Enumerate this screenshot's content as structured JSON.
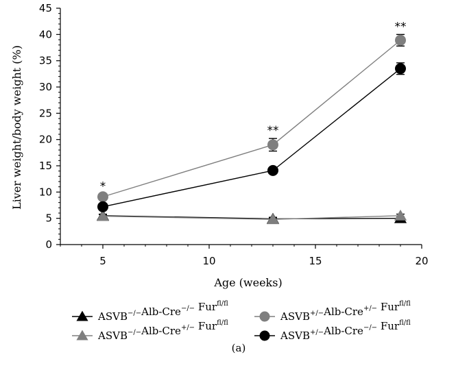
{
  "chart_data": {
    "type": "line",
    "xlabel": "Age (weeks)",
    "ylabel": "Liver weight/body weight (%)",
    "xlim": [
      3,
      20
    ],
    "ylim": [
      0,
      45
    ],
    "x_ticks": [
      5,
      10,
      15,
      20
    ],
    "y_ticks": [
      0,
      5,
      10,
      15,
      20,
      25,
      30,
      35,
      40,
      45
    ],
    "x": [
      5,
      13,
      19
    ],
    "grid": false,
    "legend_position": "bottom",
    "series": [
      {
        "legend": {
          "a": "ASVB",
          "a_sup": "−/−",
          "b": "Alb-Cre",
          "b_sup": "−/−",
          "c": "Fur",
          "c_sup": "fl/fl"
        },
        "marker": "triangle",
        "color": "#000000",
        "values": [
          5.5,
          4.9,
          5.0
        ],
        "errors": [
          0.3,
          0.3,
          0.3
        ]
      },
      {
        "legend": {
          "a": "ASVB",
          "a_sup": "−/−",
          "b": "Alb-Cre",
          "b_sup": "+/−",
          "c": "Fur",
          "c_sup": "fl/fl"
        },
        "marker": "triangle",
        "color": "#7f7f7f",
        "values": [
          5.4,
          4.8,
          5.5
        ],
        "errors": [
          0.3,
          0.3,
          0.3
        ]
      },
      {
        "legend": {
          "a": "ASVB",
          "a_sup": "+/−",
          "b": "Alb-Cre",
          "b_sup": "+/−",
          "c": "Fur",
          "c_sup": "fl/fl"
        },
        "marker": "circle",
        "color": "#7f7f7f",
        "values": [
          9.1,
          19.0,
          38.9
        ],
        "errors": [
          0.5,
          1.2,
          1.1
        ]
      },
      {
        "legend": {
          "a": "ASVB",
          "a_sup": "+/−",
          "b": "Alb-Cre",
          "b_sup": "−/−",
          "c": "Fur",
          "c_sup": "fl/fl"
        },
        "marker": "circle",
        "color": "#000000",
        "values": [
          7.2,
          14.1,
          33.5
        ],
        "errors": [
          0.4,
          0.5,
          1.1
        ]
      }
    ],
    "annotations": [
      {
        "x": 5,
        "y": 9.6,
        "text": "*"
      },
      {
        "x": 13,
        "y": 20.2,
        "text": "**"
      },
      {
        "x": 19,
        "y": 40.0,
        "text": "**"
      }
    ],
    "caption": "(a)"
  }
}
